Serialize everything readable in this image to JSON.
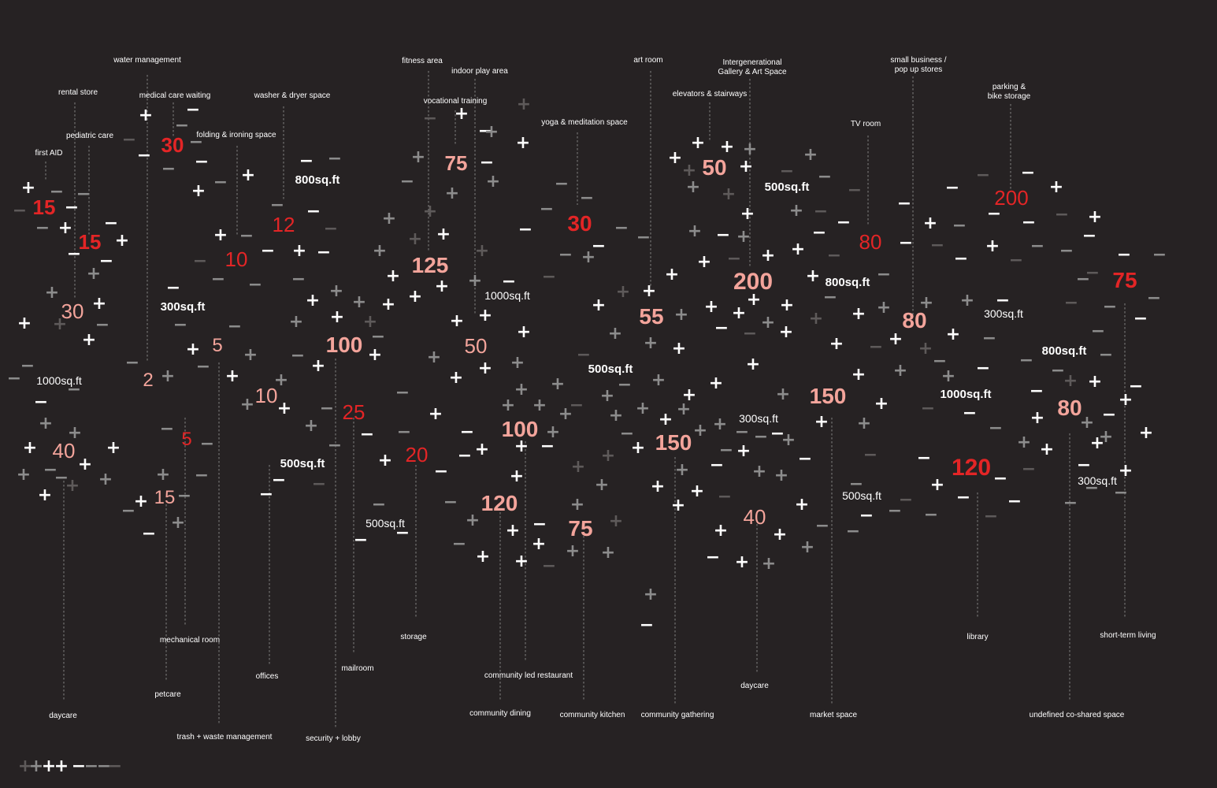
{
  "palette": {
    "background": "#262223",
    "red": "#e32526",
    "pink": "#f3a49b",
    "white": "#ffffff",
    "gray": "#8c8c8c",
    "darkgray": "#5e5a5a"
  },
  "labels": [
    {
      "text": "water management",
      "lines": [
        "water management"
      ]
    },
    {
      "text": "rental store",
      "lines": [
        "rental store"
      ]
    },
    {
      "text": "medical care waiting",
      "lines": [
        "medical care waiting"
      ]
    },
    {
      "text": "washer & dryer space",
      "lines": [
        "washer & dryer space"
      ]
    },
    {
      "text": "pediatric care",
      "lines": [
        "pediatric care"
      ]
    },
    {
      "text": "folding & ironing space",
      "lines": [
        "folding & ironing space"
      ]
    },
    {
      "text": "first AID",
      "lines": [
        "first AID"
      ]
    },
    {
      "text": "fitness area",
      "lines": [
        "fitness area"
      ]
    },
    {
      "text": "indoor play area",
      "lines": [
        "indoor play area"
      ]
    },
    {
      "text": "vocational training",
      "lines": [
        "vocational training"
      ]
    },
    {
      "text": "yoga & meditation space",
      "lines": [
        "yoga & meditation space"
      ]
    },
    {
      "text": "art room",
      "lines": [
        "art room"
      ]
    },
    {
      "text": "Intergenerational Gallery & Art Space",
      "lines": [
        "Intergenerational",
        "Gallery & Art Space"
      ]
    },
    {
      "text": "elevators & stairways",
      "lines": [
        "elevators & stairways"
      ]
    },
    {
      "text": "small business / pop up stores",
      "lines": [
        "small business /",
        "pop up stores"
      ]
    },
    {
      "text": "parking & bike storage",
      "lines": [
        "parking &",
        "bike storage"
      ]
    },
    {
      "text": "TV room",
      "lines": [
        "TV room"
      ]
    },
    {
      "text": "daycare",
      "lines": [
        "daycare"
      ]
    },
    {
      "text": "mechanical room",
      "lines": [
        "mechanical room"
      ]
    },
    {
      "text": "petcare",
      "lines": [
        "petcare"
      ]
    },
    {
      "text": "trash + waste management",
      "lines": [
        "trash + waste management"
      ]
    },
    {
      "text": "offices",
      "lines": [
        "offices"
      ]
    },
    {
      "text": "mailroom",
      "lines": [
        "mailroom"
      ]
    },
    {
      "text": "security + lobby",
      "lines": [
        "security + lobby"
      ]
    },
    {
      "text": "storage",
      "lines": [
        "storage"
      ]
    },
    {
      "text": "community led restaurant",
      "lines": [
        "community led restaurant"
      ]
    },
    {
      "text": "community dining",
      "lines": [
        "community dining"
      ]
    },
    {
      "text": "community kitchen",
      "lines": [
        "community kitchen"
      ]
    },
    {
      "text": "community gathering",
      "lines": [
        "community gathering"
      ]
    },
    {
      "text": "daycare",
      "lines": [
        "daycare"
      ]
    },
    {
      "text": "market space",
      "lines": [
        "market space"
      ]
    },
    {
      "text": "library",
      "lines": [
        "library"
      ]
    },
    {
      "text": "short-term living",
      "lines": [
        "short-term living"
      ]
    },
    {
      "text": "undefined co-shared space",
      "lines": [
        "undefined co-shared space"
      ]
    }
  ],
  "numbers": [
    {
      "text": "15",
      "color": "red",
      "bold": true
    },
    {
      "text": "15",
      "color": "red",
      "bold": true
    },
    {
      "text": "30",
      "color": "red",
      "bold": true
    },
    {
      "text": "30",
      "color": "pink",
      "bold": false
    },
    {
      "text": "40",
      "color": "pink",
      "bold": false
    },
    {
      "text": "2",
      "color": "pink",
      "bold": false
    },
    {
      "text": "5",
      "color": "pink",
      "bold": false
    },
    {
      "text": "5",
      "color": "red",
      "bold": false
    },
    {
      "text": "15",
      "color": "pink",
      "bold": false
    },
    {
      "text": "12",
      "color": "red",
      "bold": false
    },
    {
      "text": "10",
      "color": "red",
      "bold": false
    },
    {
      "text": "10",
      "color": "pink",
      "bold": false
    },
    {
      "text": "100",
      "color": "pink",
      "bold": true
    },
    {
      "text": "25",
      "color": "red",
      "bold": false
    },
    {
      "text": "20",
      "color": "red",
      "bold": false
    },
    {
      "text": "75",
      "color": "pink",
      "bold": true
    },
    {
      "text": "125",
      "color": "pink",
      "bold": true
    },
    {
      "text": "50",
      "color": "pink",
      "bold": false
    },
    {
      "text": "100",
      "color": "pink",
      "bold": true
    },
    {
      "text": "120",
      "color": "pink",
      "bold": true
    },
    {
      "text": "30",
      "color": "red",
      "bold": true
    },
    {
      "text": "75",
      "color": "pink",
      "bold": true
    },
    {
      "text": "55",
      "color": "pink",
      "bold": true
    },
    {
      "text": "150",
      "color": "pink",
      "bold": true
    },
    {
      "text": "50",
      "color": "pink",
      "bold": true
    },
    {
      "text": "200",
      "color": "pink",
      "bold": true
    },
    {
      "text": "40",
      "color": "pink",
      "bold": false
    },
    {
      "text": "150",
      "color": "pink",
      "bold": true
    },
    {
      "text": "80",
      "color": "red",
      "bold": false
    },
    {
      "text": "80",
      "color": "pink",
      "bold": true
    },
    {
      "text": "200",
      "color": "red",
      "bold": false
    },
    {
      "text": "120",
      "color": "red",
      "bold": true
    },
    {
      "text": "80",
      "color": "pink",
      "bold": true
    },
    {
      "text": "75",
      "color": "red",
      "bold": true
    }
  ],
  "areas": [
    {
      "text": "1000sq.ft",
      "bold": false
    },
    {
      "text": "300sq.ft",
      "bold": true
    },
    {
      "text": "800sq.ft",
      "bold": true
    },
    {
      "text": "500sq.ft",
      "bold": true
    },
    {
      "text": "500sq.ft",
      "bold": false
    },
    {
      "text": "1000sq.ft",
      "bold": false
    },
    {
      "text": "500sq.ft",
      "bold": true
    },
    {
      "text": "500sq.ft",
      "bold": true
    },
    {
      "text": "300sq.ft",
      "bold": false
    },
    {
      "text": "800sq.ft",
      "bold": true
    },
    {
      "text": "500sq.ft",
      "bold": false
    },
    {
      "text": "300sq.ft",
      "bold": false
    },
    {
      "text": "800sq.ft",
      "bold": true
    },
    {
      "text": "1000sq.ft",
      "bold": true
    },
    {
      "text": "300sq.ft",
      "bold": false
    }
  ]
}
